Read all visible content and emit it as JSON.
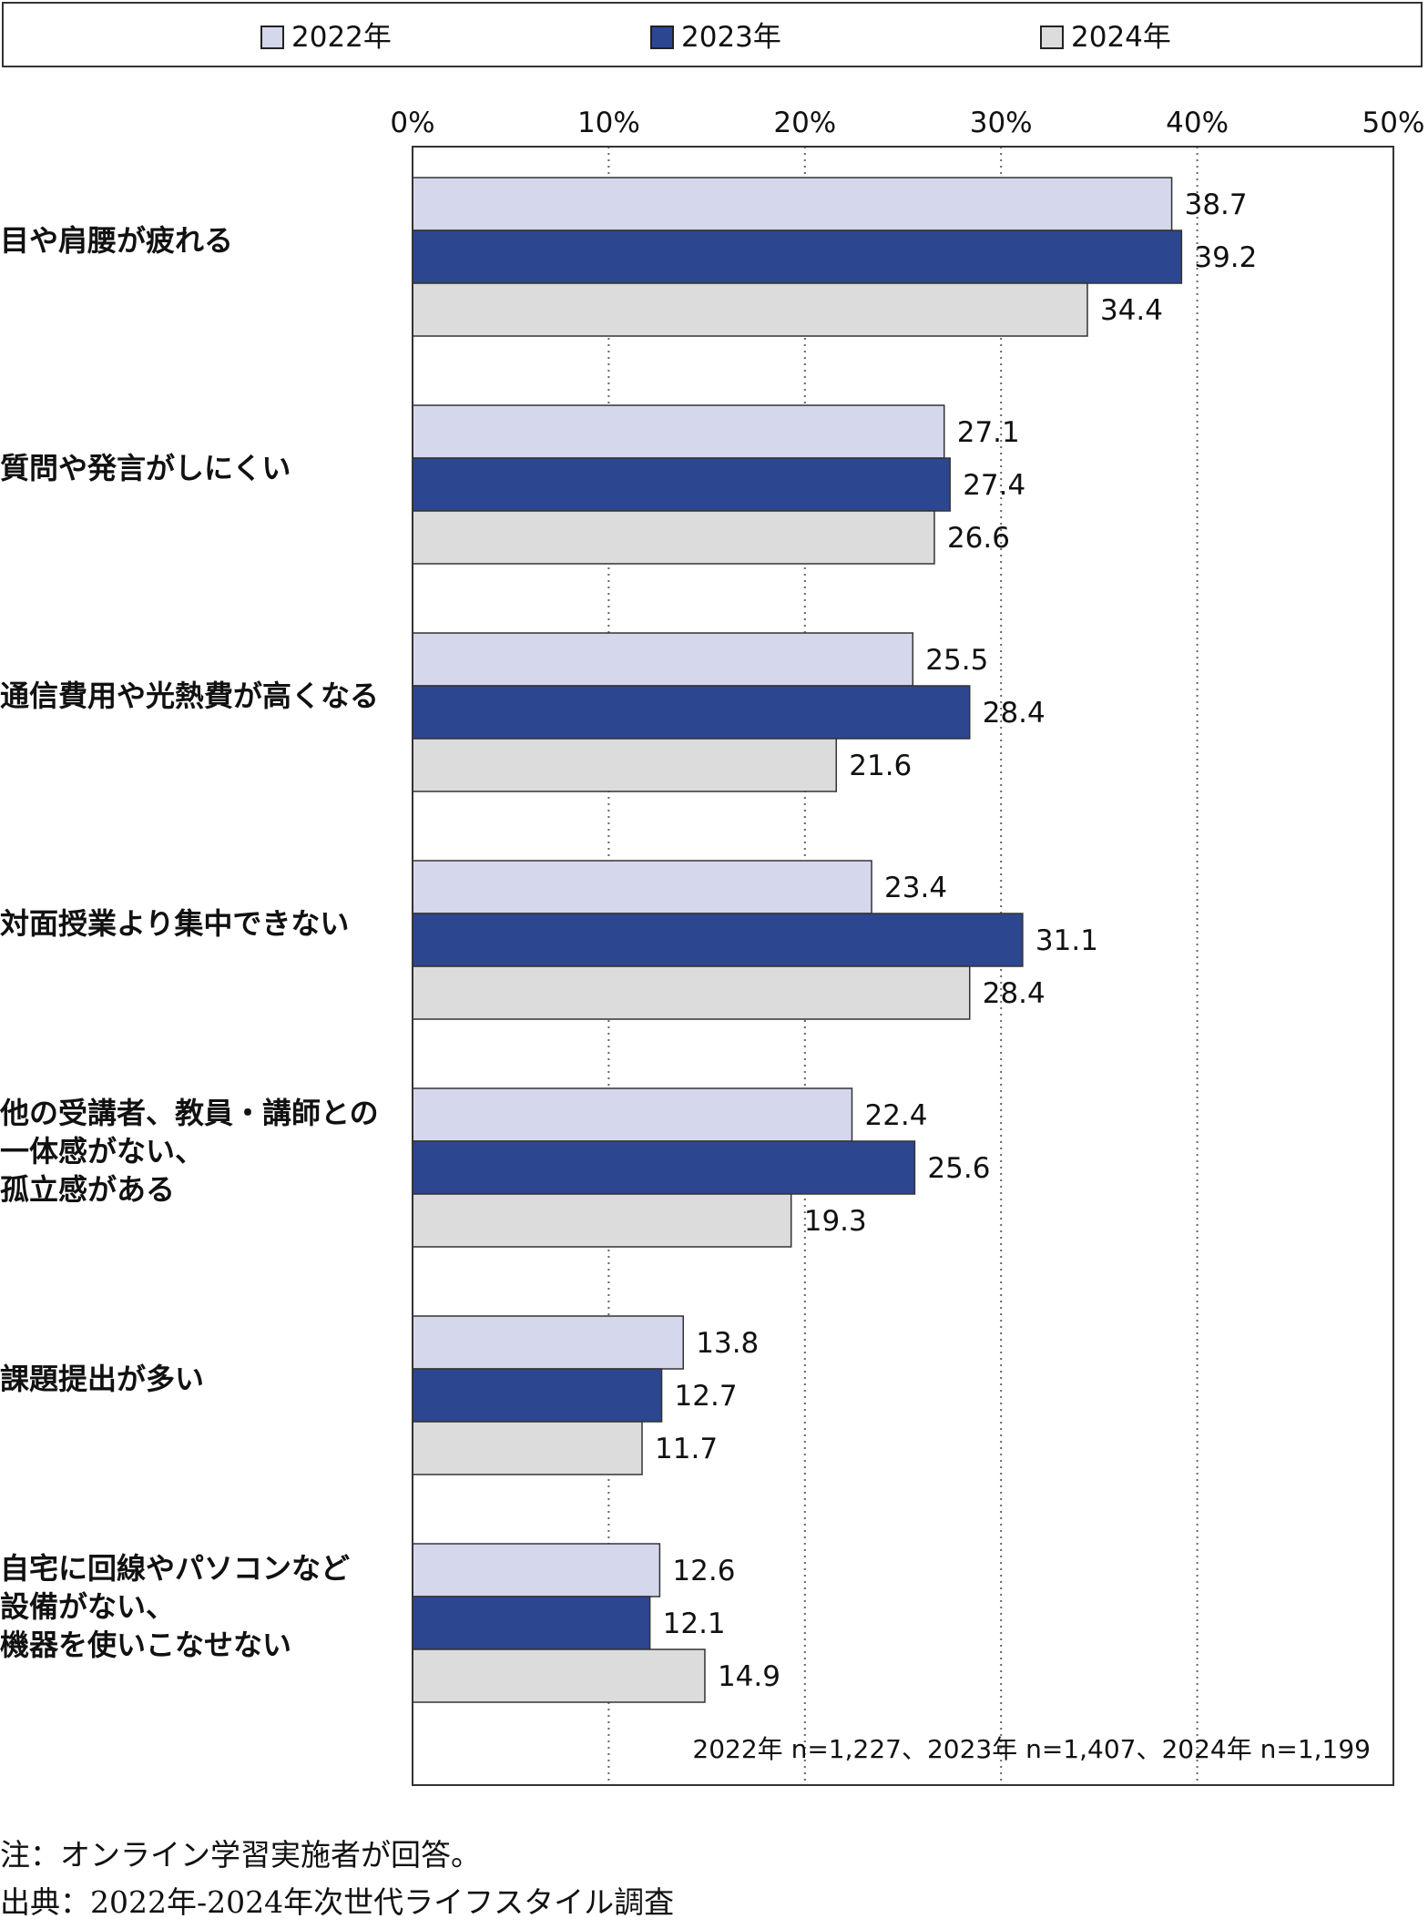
{
  "legend": {
    "items": [
      {
        "label": "2022年",
        "color": "#d5d7ec"
      },
      {
        "label": "2023年",
        "color": "#2c4790"
      },
      {
        "label": "2024年",
        "color": "#dcdcdc"
      }
    ]
  },
  "chart_data": {
    "type": "bar",
    "orientation": "horizontal",
    "categories": [
      "目や肩腰が疲れる",
      "質問や発言がしにくい",
      "通信費用や光熱費が高くなる",
      "対面授業より集中できない",
      "他の受講者、教員・講師との\n一体感がない、\n孤立感がある",
      "課題提出が多い",
      "自宅に回線やパソコンなど\n設備がない、\n機器を使いこなせない"
    ],
    "series": [
      {
        "name": "2022年",
        "values": [
          38.7,
          27.1,
          25.5,
          23.4,
          22.4,
          13.8,
          12.6
        ]
      },
      {
        "name": "2023年",
        "values": [
          39.2,
          27.4,
          28.4,
          31.1,
          25.6,
          12.7,
          12.1
        ]
      },
      {
        "name": "2024年",
        "values": [
          34.4,
          26.6,
          21.6,
          28.4,
          19.3,
          11.7,
          14.9
        ]
      }
    ],
    "xlim": [
      0,
      50
    ],
    "xticks": [
      "0%",
      "10%",
      "20%",
      "30%",
      "40%",
      "50%"
    ],
    "axis_position": "top",
    "grid": "dotted vertical",
    "legend_position": "top",
    "sample_note": "2022年 n=1,227、2023年 n=1,407、2024年 n=1,199"
  },
  "notes": {
    "note": "注：オンライン学習実施者が回答。",
    "source": "出典：2022年-2024年次世代ライフスタイル調査"
  }
}
